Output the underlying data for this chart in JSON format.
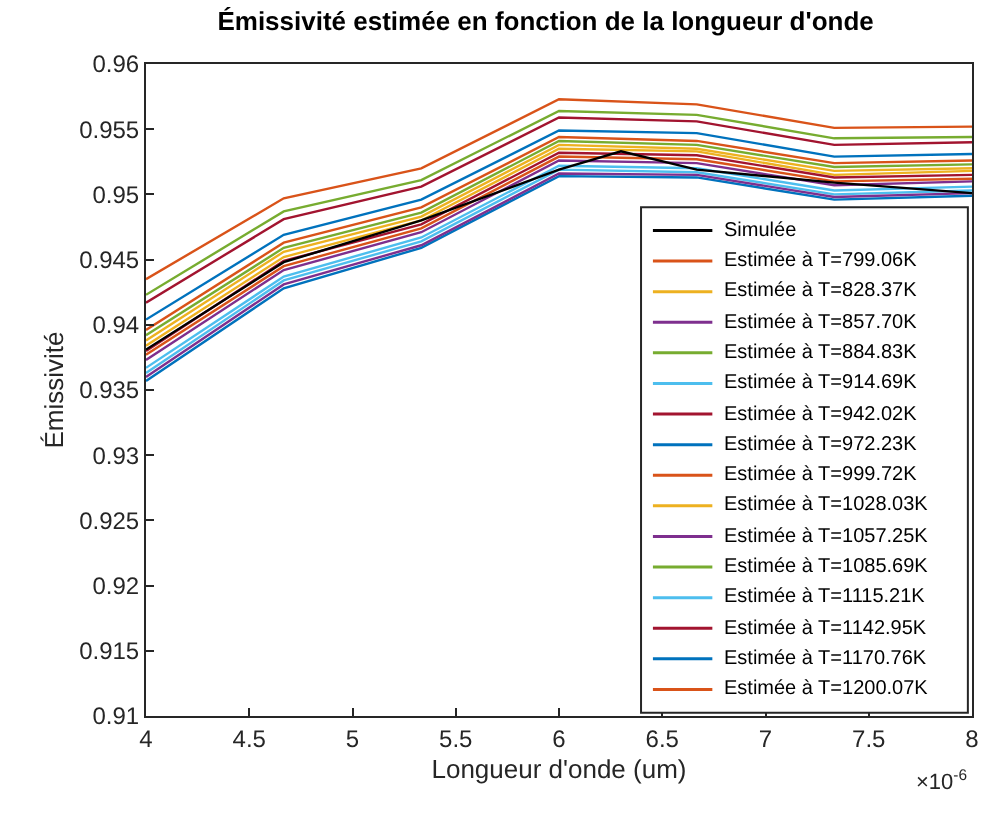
{
  "chart_data": {
    "type": "line",
    "title": "Émissivité estimée en fonction de la longueur d'onde",
    "xlabel": "Longueur d'onde (um)",
    "ylabel": "Émissivité",
    "annotations": [
      "×10$^{-6}$"
    ],
    "x": [
      4,
      4.667,
      5.333,
      6,
      6.667,
      7.333,
      8
    ],
    "xlim": [
      4,
      8
    ],
    "xticks": [
      4,
      4.5,
      5,
      5.5,
      6,
      6.5,
      7,
      7.5,
      8
    ],
    "ylim": [
      0.91,
      0.96
    ],
    "yticks": [
      0.91,
      0.915,
      0.92,
      0.925,
      0.93,
      0.935,
      0.94,
      0.945,
      0.95,
      0.955,
      0.96
    ],
    "legend": "bottom right",
    "line_style": "solid",
    "series": [
      {
        "name": "Simulée",
        "color": "#000000",
        "x": [
          4,
          4.667,
          5.333,
          6,
          6.3,
          6.667,
          7.333,
          8
        ],
        "values": [
          0.9381,
          0.9448,
          0.948,
          0.9519,
          0.9533,
          0.9519,
          0.9509,
          0.9501
        ]
      },
      {
        "name": "Estimée à T=799.06K",
        "color": "#d95319",
        "values": [
          0.9377,
          0.9445,
          0.9474,
          0.9529,
          0.9527,
          0.951,
          0.9512
        ]
      },
      {
        "name": "Estimée à T=828.37K",
        "color": "#edb120",
        "values": [
          0.9388,
          0.9456,
          0.9483,
          0.9538,
          0.9535,
          0.9518,
          0.952
        ]
      },
      {
        "name": "Estimée à T=857.70K",
        "color": "#7e2f8e",
        "values": [
          0.936,
          0.9431,
          0.9461,
          0.9516,
          0.9515,
          0.9498,
          0.9501
        ]
      },
      {
        "name": "Estimée à T=884.83K",
        "color": "#77ac30",
        "values": [
          0.9392,
          0.9459,
          0.9486,
          0.9541,
          0.9538,
          0.9521,
          0.9523
        ]
      },
      {
        "name": "Estimée à T=914.69K",
        "color": "#4dbeee",
        "values": [
          0.9363,
          0.9434,
          0.9464,
          0.9519,
          0.9517,
          0.95,
          0.9503
        ]
      },
      {
        "name": "Estimée à T=942.02K",
        "color": "#a2142f",
        "values": [
          0.938,
          0.9449,
          0.9477,
          0.9532,
          0.953,
          0.9513,
          0.9515
        ]
      },
      {
        "name": "Estimée à T=972.23K",
        "color": "#0072bd",
        "values": [
          0.9357,
          0.9428,
          0.9459,
          0.9514,
          0.9513,
          0.9496,
          0.9499
        ]
      },
      {
        "name": "Estimée à T=999.72K",
        "color": "#d95319",
        "values": [
          0.9396,
          0.9463,
          0.949,
          0.9544,
          0.9541,
          0.9524,
          0.9526
        ]
      },
      {
        "name": "Estimée à T=1028.03K",
        "color": "#edb120",
        "values": [
          0.9384,
          0.9452,
          0.948,
          0.9535,
          0.9533,
          0.9515,
          0.9518
        ]
      },
      {
        "name": "Estimée à T=1057.25K",
        "color": "#7e2f8e",
        "values": [
          0.9373,
          0.9442,
          0.9471,
          0.9526,
          0.9524,
          0.9507,
          0.951
        ]
      },
      {
        "name": "Estimée à T=1085.69K",
        "color": "#77ac30",
        "values": [
          0.9423,
          0.9487,
          0.9511,
          0.9564,
          0.9561,
          0.9543,
          0.9544
        ]
      },
      {
        "name": "Estimée à T=1115.21K",
        "color": "#4dbeee",
        "values": [
          0.9367,
          0.9437,
          0.9467,
          0.9522,
          0.952,
          0.9503,
          0.9506
        ]
      },
      {
        "name": "Estimée à T=1142.95K",
        "color": "#a2142f",
        "values": [
          0.9417,
          0.9481,
          0.9506,
          0.9559,
          0.9556,
          0.9538,
          0.954
        ]
      },
      {
        "name": "Estimée à T=1170.76K",
        "color": "#0072bd",
        "values": [
          0.9404,
          0.9469,
          0.9496,
          0.9549,
          0.9547,
          0.9529,
          0.9531
        ]
      },
      {
        "name": "Estimée à T=1200.07K",
        "color": "#d95319",
        "values": [
          0.9435,
          0.9497,
          0.952,
          0.9573,
          0.9569,
          0.9551,
          0.9552
        ]
      }
    ]
  }
}
